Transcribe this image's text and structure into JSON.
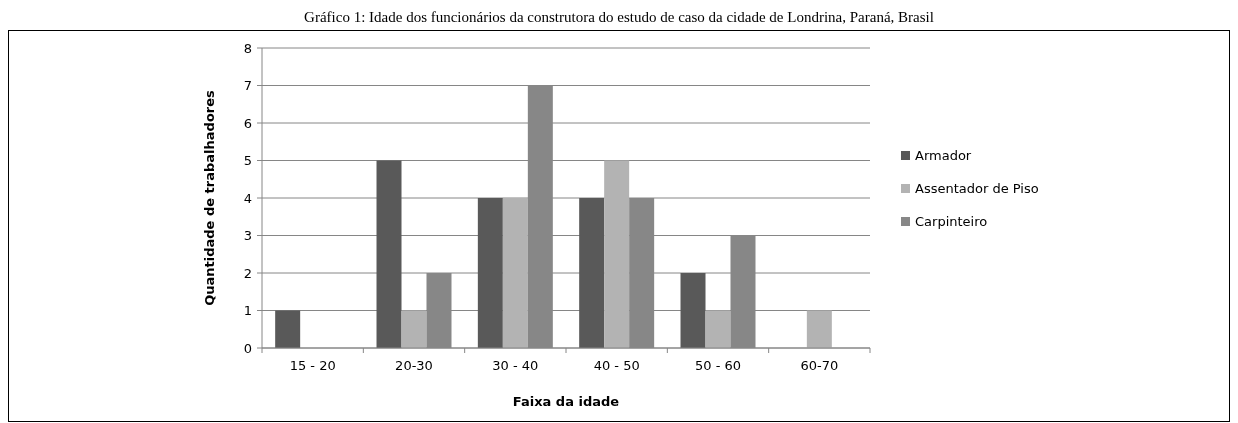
{
  "chart_data": {
    "type": "bar",
    "title": "Gráfico 1: Idade dos funcionários da construtora do estudo de caso da cidade de Londrina, Paraná, Brasil",
    "xlabel": "Faixa da idade",
    "ylabel": "Quantidade de trabalhadores",
    "categories": [
      "15 - 20",
      "20-30",
      "30 - 40",
      "40 - 50",
      "50 - 60",
      "60-70"
    ],
    "series": [
      {
        "name": "Armador",
        "color": "#595959",
        "values": [
          1,
          5,
          4,
          4,
          2,
          0
        ]
      },
      {
        "name": "Assentador de Piso",
        "color": "#b3b3b3",
        "values": [
          0,
          1,
          4,
          5,
          1,
          1
        ]
      },
      {
        "name": "Carpinteiro",
        "color": "#878787",
        "values": [
          0,
          2,
          7,
          4,
          3,
          0
        ]
      }
    ],
    "ylim": [
      0,
      8
    ],
    "yticks": [
      0,
      1,
      2,
      3,
      4,
      5,
      6,
      7,
      8
    ],
    "grid": "y",
    "legend": "right"
  }
}
